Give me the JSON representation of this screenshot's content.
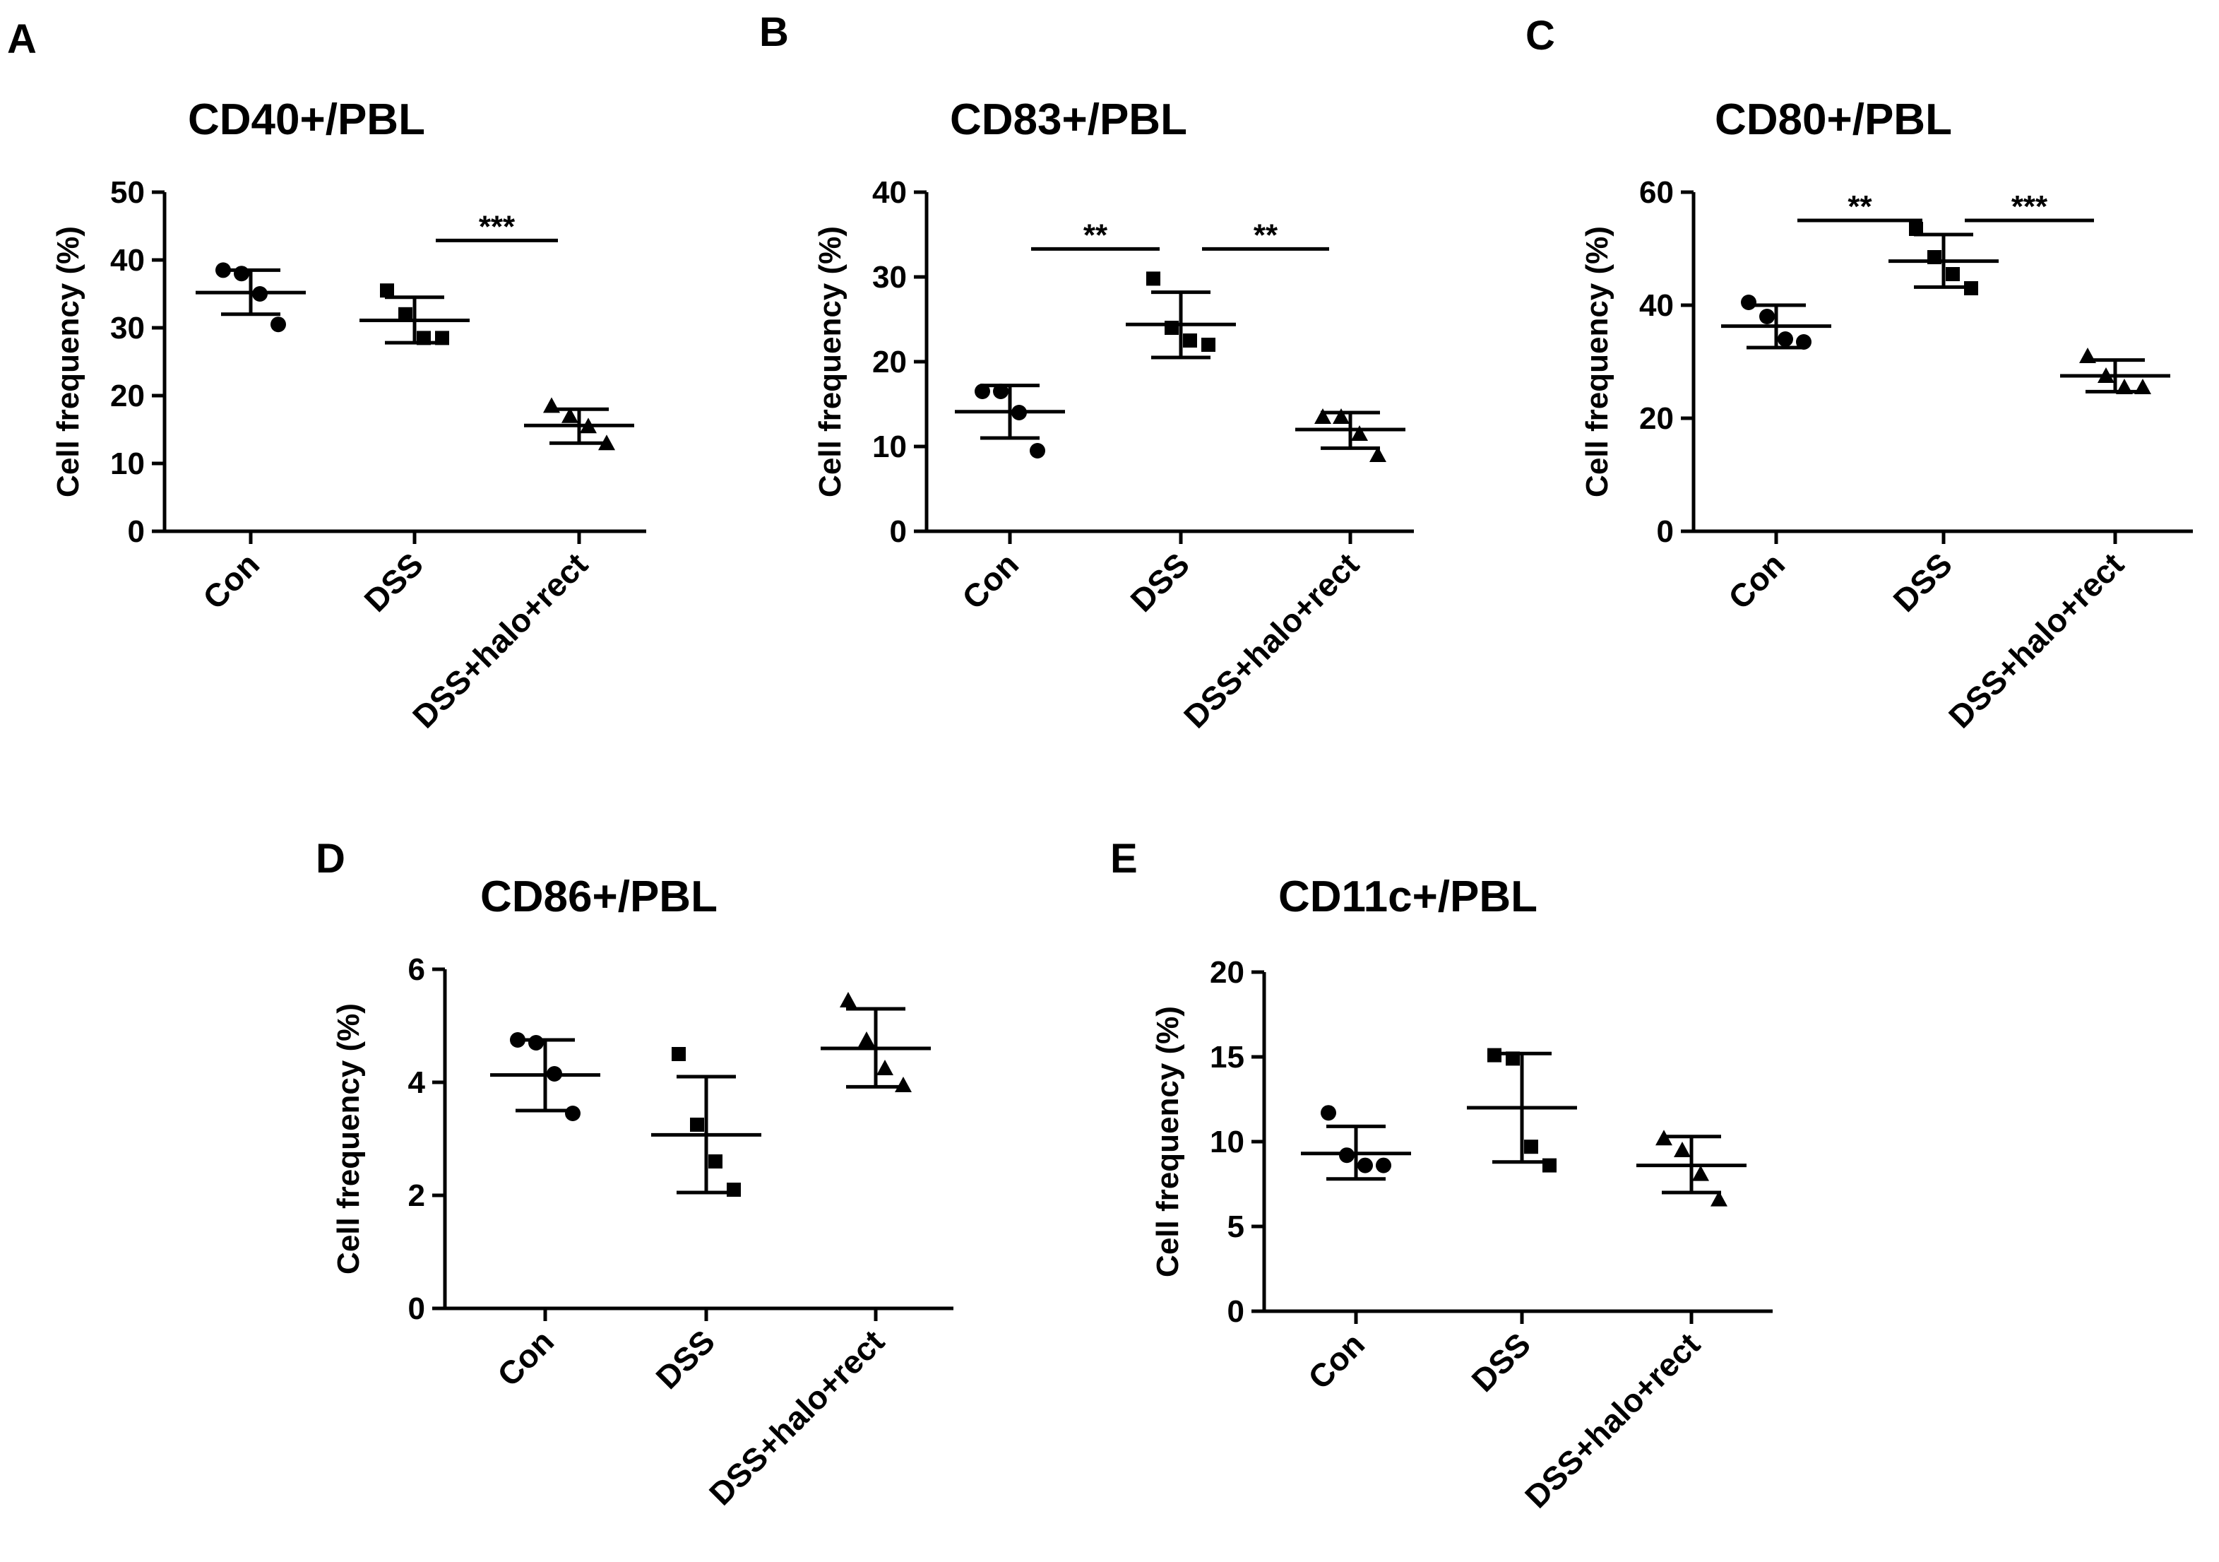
{
  "chart_data": [
    {
      "id": "A",
      "type": "scatter",
      "panel_letter": "A",
      "title": "CD40+/PBL",
      "ylabel": "Cell frequency (%)",
      "xlabel": "",
      "ylim": [
        0,
        50
      ],
      "yticks": [
        "0",
        "10",
        "20",
        "30",
        "40",
        "50"
      ],
      "categories": [
        "Con",
        "DSS",
        "DSS+halo+rect"
      ],
      "groups": [
        {
          "name": "Con",
          "marker": "circle",
          "points": [
            38.5,
            38.0,
            35.0,
            30.5
          ],
          "mean": 35.2,
          "sd_low": 32.0,
          "sd_high": 38.5
        },
        {
          "name": "DSS",
          "marker": "square",
          "points": [
            35.5,
            32.0,
            28.5,
            28.5
          ],
          "mean": 31.1,
          "sd_low": 27.8,
          "sd_high": 34.5
        },
        {
          "name": "DSS+halo+rect",
          "marker": "triangle",
          "points": [
            18.5,
            17.0,
            15.5,
            13.0
          ],
          "mean": 15.6,
          "sd_low": 13.0,
          "sd_high": 18.0
        }
      ],
      "significance": [
        {
          "from": "DSS",
          "to": "DSS+halo+rect",
          "label": "***"
        }
      ]
    },
    {
      "id": "B",
      "type": "scatter",
      "panel_letter": "B",
      "title": "CD83+/PBL",
      "ylabel": "Cell frequency (%)",
      "xlabel": "",
      "ylim": [
        0,
        40
      ],
      "yticks": [
        "0",
        "10",
        "20",
        "30",
        "40"
      ],
      "categories": [
        "Con",
        "DSS",
        "DSS+halo+rect"
      ],
      "groups": [
        {
          "name": "Con",
          "marker": "circle",
          "points": [
            16.5,
            16.5,
            14.0,
            9.5
          ],
          "mean": 14.1,
          "sd_low": 11.0,
          "sd_high": 17.2
        },
        {
          "name": "DSS",
          "marker": "square",
          "points": [
            29.8,
            24.0,
            22.5,
            22.0
          ],
          "mean": 24.4,
          "sd_low": 20.5,
          "sd_high": 28.2
        },
        {
          "name": "DSS+halo+rect",
          "marker": "triangle",
          "points": [
            13.5,
            13.5,
            11.5,
            9.0
          ],
          "mean": 12.0,
          "sd_low": 9.8,
          "sd_high": 14.0
        }
      ],
      "significance": [
        {
          "from": "Con",
          "to": "DSS",
          "label": "**"
        },
        {
          "from": "DSS",
          "to": "DSS+halo+rect",
          "label": "**"
        }
      ]
    },
    {
      "id": "C",
      "type": "scatter",
      "panel_letter": "C",
      "title": "CD80+/PBL",
      "ylabel": "Cell frequency (%)",
      "xlabel": "",
      "ylim": [
        0,
        60
      ],
      "yticks": [
        "0",
        "20",
        "40",
        "60"
      ],
      "categories": [
        "Con",
        "DSS",
        "DSS+halo+rect"
      ],
      "groups": [
        {
          "name": "Con",
          "marker": "circle",
          "points": [
            40.5,
            38.0,
            34.0,
            33.5
          ],
          "mean": 36.3,
          "sd_low": 32.5,
          "sd_high": 40.0
        },
        {
          "name": "DSS",
          "marker": "square",
          "points": [
            53.5,
            48.5,
            45.5,
            43.0
          ],
          "mean": 47.8,
          "sd_low": 43.2,
          "sd_high": 52.5
        },
        {
          "name": "DSS+halo+rect",
          "marker": "triangle",
          "points": [
            31.0,
            27.5,
            25.5,
            25.5
          ],
          "mean": 27.5,
          "sd_low": 24.7,
          "sd_high": 30.3
        }
      ],
      "significance": [
        {
          "from": "Con",
          "to": "DSS",
          "label": "**"
        },
        {
          "from": "DSS",
          "to": "DSS+halo+rect",
          "label": "***"
        }
      ]
    },
    {
      "id": "D",
      "type": "scatter",
      "panel_letter": "D",
      "title": "CD86+/PBL",
      "ylabel": "Cell frequency (%)",
      "xlabel": "",
      "ylim": [
        0,
        6
      ],
      "yticks": [
        "0",
        "2",
        "4",
        "6"
      ],
      "categories": [
        "Con",
        "DSS",
        "DSS+halo+rect"
      ],
      "groups": [
        {
          "name": "Con",
          "marker": "circle",
          "points": [
            4.75,
            4.7,
            4.15,
            3.45
          ],
          "mean": 4.13,
          "sd_low": 3.5,
          "sd_high": 4.75
        },
        {
          "name": "DSS",
          "marker": "square",
          "points": [
            4.5,
            3.25,
            2.6,
            2.1
          ],
          "mean": 3.07,
          "sd_low": 2.05,
          "sd_high": 4.1
        },
        {
          "name": "DSS+halo+rect",
          "marker": "triangle",
          "points": [
            5.45,
            4.75,
            4.25,
            3.95
          ],
          "mean": 4.6,
          "sd_low": 3.92,
          "sd_high": 5.3
        }
      ],
      "significance": []
    },
    {
      "id": "E",
      "type": "scatter",
      "panel_letter": "E",
      "title": "CD11c+/PBL",
      "ylabel": "Cell frequency (%)",
      "xlabel": "",
      "ylim": [
        0,
        20
      ],
      "yticks": [
        "0",
        "5",
        "10",
        "15",
        "20"
      ],
      "categories": [
        "Con",
        "DSS",
        "DSS+halo+rect"
      ],
      "groups": [
        {
          "name": "Con",
          "marker": "circle",
          "points": [
            11.7,
            9.2,
            8.6,
            8.6
          ],
          "mean": 9.3,
          "sd_low": 7.8,
          "sd_high": 10.9
        },
        {
          "name": "DSS",
          "marker": "square",
          "points": [
            15.1,
            14.9,
            9.7,
            8.6
          ],
          "mean": 12.0,
          "sd_low": 8.8,
          "sd_high": 15.2
        },
        {
          "name": "DSS+halo+rect",
          "marker": "triangle",
          "points": [
            10.2,
            9.5,
            8.1,
            6.6
          ],
          "mean": 8.6,
          "sd_low": 7.0,
          "sd_high": 10.3
        }
      ],
      "significance": []
    }
  ]
}
